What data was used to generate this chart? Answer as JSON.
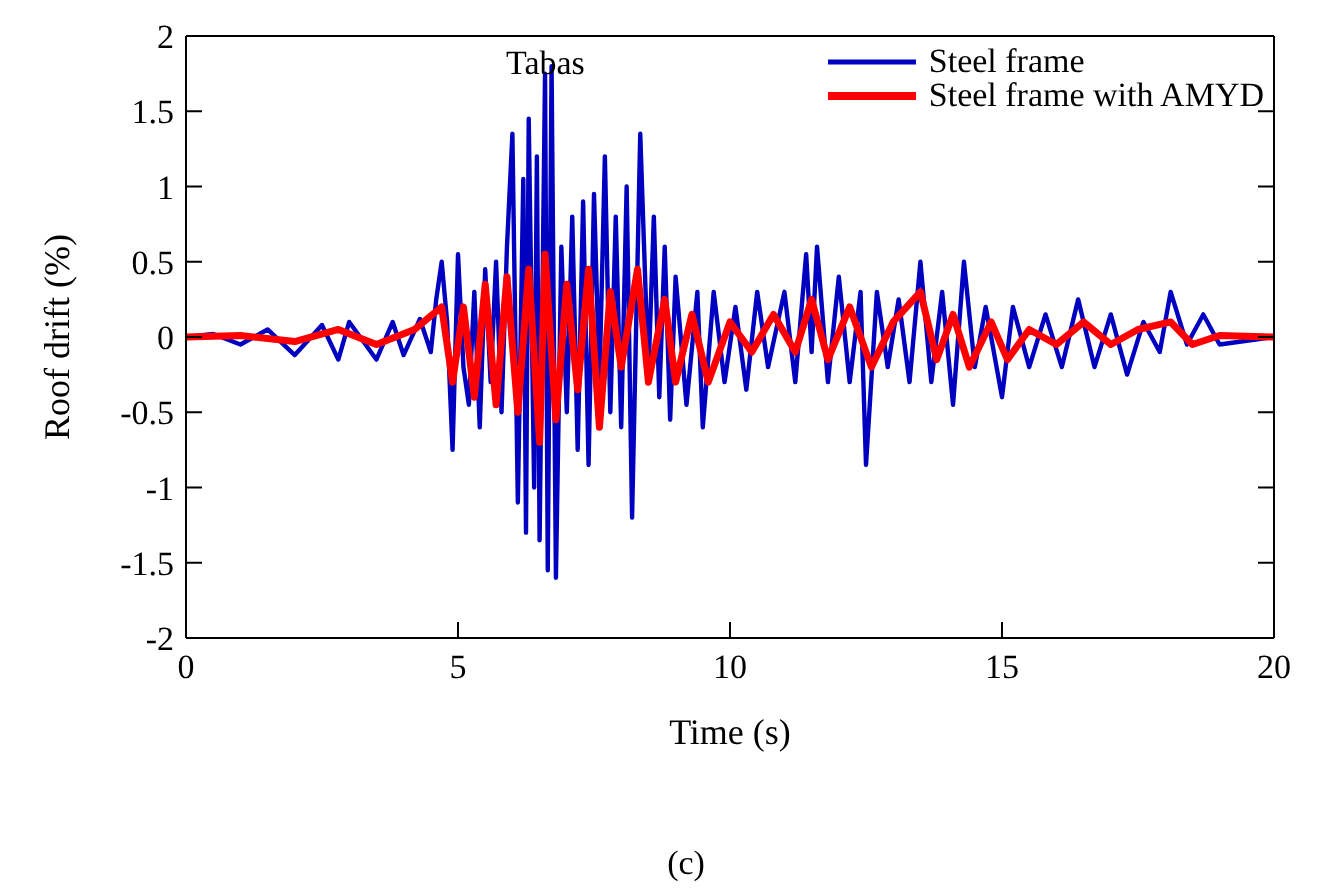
{
  "chart_data": {
    "type": "line",
    "xlabel": "Time (s)",
    "ylabel": "Roof drift (%)",
    "annotations": [
      "Tabas",
      "(c)"
    ],
    "xlim": [
      0,
      20
    ],
    "xticks": [
      0,
      5,
      10,
      15,
      20
    ],
    "ylim": [
      -2,
      2
    ],
    "yticks": [
      -2,
      -1.5,
      -1,
      -0.5,
      0,
      0.5,
      1,
      1.5,
      2
    ],
    "legend": "top right",
    "grid": false,
    "marker": "none",
    "line_style": "solid",
    "series": [
      {
        "name": "Steel frame",
        "color": "#0000c0",
        "x": [
          0,
          0.5,
          1,
          1.5,
          2,
          2.5,
          2.8,
          3,
          3.5,
          3.8,
          4,
          4.3,
          4.5,
          4.6,
          4.7,
          4.8,
          4.9,
          5.0,
          5.1,
          5.2,
          5.3,
          5.4,
          5.5,
          5.6,
          5.7,
          5.8,
          5.9,
          6.0,
          6.1,
          6.2,
          6.25,
          6.3,
          6.4,
          6.45,
          6.5,
          6.6,
          6.65,
          6.72,
          6.8,
          6.9,
          7.0,
          7.1,
          7.2,
          7.3,
          7.4,
          7.5,
          7.6,
          7.7,
          7.8,
          7.9,
          8.0,
          8.1,
          8.2,
          8.35,
          8.5,
          8.6,
          8.7,
          8.8,
          8.9,
          9.0,
          9.2,
          9.4,
          9.5,
          9.7,
          9.9,
          10.1,
          10.3,
          10.5,
          10.7,
          11.0,
          11.2,
          11.4,
          11.5,
          11.6,
          11.8,
          12.0,
          12.2,
          12.4,
          12.5,
          12.7,
          12.9,
          13.1,
          13.3,
          13.5,
          13.7,
          13.9,
          14.1,
          14.3,
          14.5,
          14.7,
          15.0,
          15.2,
          15.5,
          15.8,
          16.1,
          16.4,
          16.7,
          17.0,
          17.3,
          17.6,
          17.9,
          18.1,
          18.4,
          18.7,
          19.0,
          20
        ],
        "values": [
          0,
          0.02,
          -0.05,
          0.05,
          -0.12,
          0.08,
          -0.15,
          0.1,
          -0.15,
          0.1,
          -0.12,
          0.12,
          -0.1,
          0.25,
          0.5,
          0.1,
          -0.75,
          0.55,
          -0.2,
          -0.45,
          0.3,
          -0.6,
          0.45,
          -0.3,
          0.5,
          -0.5,
          0.6,
          1.35,
          -1.1,
          1.05,
          -1.3,
          1.45,
          -1.0,
          1.2,
          -1.35,
          1.75,
          -1.55,
          1.8,
          -1.6,
          0.6,
          -0.5,
          0.8,
          -0.75,
          0.9,
          -0.85,
          0.95,
          -0.3,
          1.2,
          -0.5,
          0.8,
          -0.6,
          1.0,
          -1.2,
          1.35,
          -0.25,
          0.8,
          -0.4,
          0.6,
          -0.55,
          0.4,
          -0.45,
          0.3,
          -0.6,
          0.3,
          -0.3,
          0.2,
          -0.35,
          0.3,
          -0.2,
          0.3,
          -0.3,
          0.55,
          -0.1,
          0.6,
          -0.3,
          0.4,
          -0.3,
          0.3,
          -0.85,
          0.3,
          -0.2,
          0.25,
          -0.3,
          0.5,
          -0.3,
          0.3,
          -0.45,
          0.5,
          -0.2,
          0.2,
          -0.4,
          0.2,
          -0.2,
          0.15,
          -0.2,
          0.25,
          -0.2,
          0.15,
          -0.25,
          0.1,
          -0.1,
          0.3,
          -0.05,
          0.15,
          -0.05,
          0
        ]
      },
      {
        "name": "Steel frame with AMYD",
        "color": "#ff0000",
        "x": [
          0,
          1,
          2,
          2.8,
          3.5,
          4.2,
          4.7,
          4.9,
          5.1,
          5.3,
          5.5,
          5.7,
          5.9,
          6.1,
          6.3,
          6.5,
          6.6,
          6.8,
          7.0,
          7.2,
          7.4,
          7.6,
          7.8,
          8.0,
          8.3,
          8.5,
          8.8,
          9.0,
          9.3,
          9.6,
          10,
          10.4,
          10.8,
          11.2,
          11.5,
          11.8,
          12.2,
          12.6,
          13.0,
          13.5,
          13.8,
          14.1,
          14.4,
          14.8,
          15.1,
          15.5,
          16,
          16.5,
          17,
          17.5,
          18.1,
          18.5,
          19,
          20
        ],
        "values": [
          0,
          0.01,
          -0.03,
          0.05,
          -0.05,
          0.05,
          0.2,
          -0.3,
          0.2,
          -0.4,
          0.35,
          -0.45,
          0.4,
          -0.5,
          0.45,
          -0.7,
          0.55,
          -0.55,
          0.35,
          -0.35,
          0.45,
          -0.6,
          0.3,
          -0.2,
          0.45,
          -0.3,
          0.25,
          -0.3,
          0.15,
          -0.3,
          0.1,
          -0.1,
          0.15,
          -0.1,
          0.25,
          -0.15,
          0.2,
          -0.2,
          0.1,
          0.3,
          -0.15,
          0.15,
          -0.2,
          0.1,
          -0.15,
          0.05,
          -0.05,
          0.1,
          -0.05,
          0.05,
          0.1,
          -0.05,
          0.01,
          0
        ]
      }
    ]
  }
}
